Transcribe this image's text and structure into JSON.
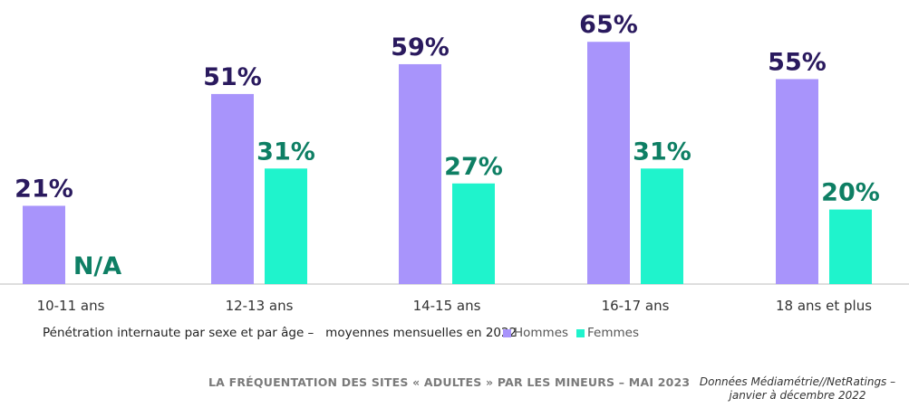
{
  "chart_data": {
    "type": "bar",
    "categories": [
      "10-11 ans",
      "12-13 ans",
      "14-15 ans",
      "16-17 ans",
      "18 ans et plus"
    ],
    "series": [
      {
        "name": "Hommes",
        "values": [
          21,
          51,
          59,
          65,
          55
        ],
        "labels": [
          "21%",
          "51%",
          "59%",
          "65%",
          "55%"
        ],
        "color": "#a894fb"
      },
      {
        "name": "Femmes",
        "values": [
          null,
          31,
          27,
          31,
          20
        ],
        "labels": [
          "N/A",
          "31%",
          "27%",
          "31%",
          "20%"
        ],
        "color": "#1ff3cc"
      }
    ],
    "ylim": [
      0,
      67
    ],
    "xlabel": "Pénétration internaute par sexe et par âge –   moyennes mensuelles en 2022",
    "ylabel": "",
    "legend_position": "bottom",
    "grid": false
  },
  "colors": {
    "hommes_label": "#2a1a5e",
    "femmes_label": "#0e7f64",
    "axis": "#bdbdbd"
  },
  "footer": {
    "title": "LA FRÉQUENTATION DES SITES « ADULTES » PAR LES MINEURS – MAI 2023",
    "source_line1": "Données Médiamétrie//NetRatings –",
    "source_line2": "janvier à décembre 2022"
  }
}
